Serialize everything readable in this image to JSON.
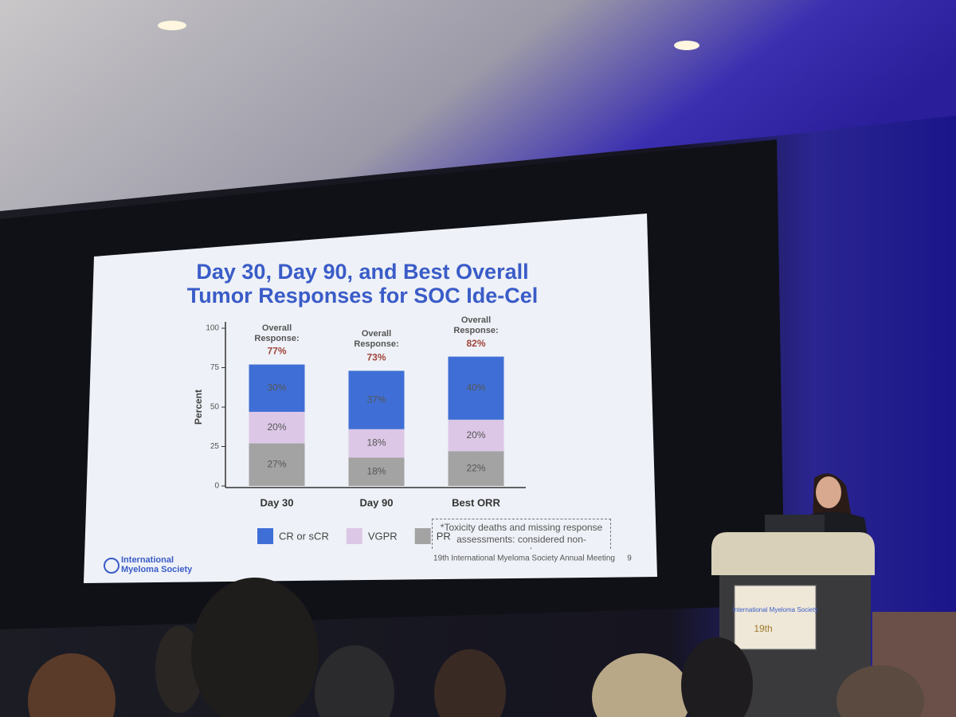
{
  "chart_data": {
    "type": "stacked_bar",
    "title": "Day 30, Day 90, and Best Overall Tumor Responses for SOC Ide-Cel",
    "y_label": "Percent",
    "categories": [
      "Day 30",
      "Day 90",
      "Best ORR"
    ],
    "series": [
      {
        "name": "PR",
        "color": "#a3a3a3",
        "values": [
          27,
          18,
          22
        ],
        "value_labels": [
          "27%",
          "18%",
          "22%"
        ]
      },
      {
        "name": "VGPR",
        "color": "#dcc7e6",
        "values": [
          20,
          18,
          20
        ],
        "value_labels": [
          "20%",
          "18%",
          "20%"
        ]
      },
      {
        "name": "CR or sCR",
        "color": "#3f6fd6",
        "values": [
          30,
          37,
          40
        ],
        "value_labels": [
          "30%",
          "37%",
          "40%"
        ]
      }
    ],
    "overall_response": {
      "label": "Overall Response:",
      "values": [
        77,
        73,
        82
      ],
      "value_labels": [
        "77%",
        "73%",
        "82%"
      ],
      "color": "#a0453a"
    },
    "ylim": [
      0,
      100
    ],
    "yticks": [
      0,
      25,
      50,
      75,
      100
    ],
    "grid": false,
    "footnote": "*Toxicity deaths and missing response assessments: considered non-responders",
    "footer": "19th International Myeloma Society Annual Meeting",
    "page_number": "9",
    "logo": "International Myeloma Society"
  },
  "podium": {
    "logo": "International Myeloma Society",
    "event": "19th"
  }
}
